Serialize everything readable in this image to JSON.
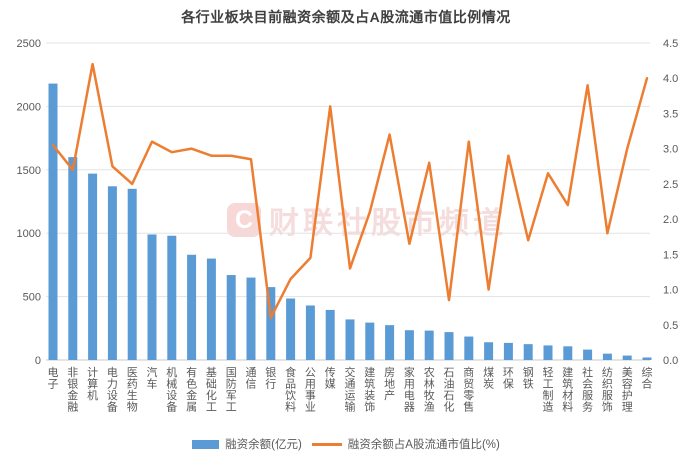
{
  "title": "各行业板块目前融资余额及占A股流通市值比例情况",
  "watermark": {
    "logo_letter": "C",
    "text": "财联社股市频道"
  },
  "legend": [
    {
      "label": "融资余额(亿元)",
      "type": "bar"
    },
    {
      "label": "融资余额占A股流通市值比(%)",
      "type": "line"
    }
  ],
  "colors": {
    "bar": "#5B9BD5",
    "line": "#ED7D31",
    "gridline": "#e3e3e3",
    "axis_line": "#c9c9c9",
    "tick_label": "#595959",
    "title": "#3f3f3f"
  },
  "chart_data": {
    "type": "bar",
    "subtype": "combo-bar-line-dual-axis",
    "title": "各行业板块目前融资余额及占A股流通市值比例情况",
    "xlabel": "",
    "ylabel_left": "融资余额(亿元)",
    "ylabel_right": "融资余额占A股流通市值比(%)",
    "grid": true,
    "legend_position": "bottom",
    "categories": [
      "电子",
      "非银金融",
      "计算机",
      "电力设备",
      "医药生物",
      "汽车",
      "机械设备",
      "有色金属",
      "基础化工",
      "国防军工",
      "通信",
      "银行",
      "食品饮料",
      "公用事业",
      "传媒",
      "交通运输",
      "建筑装饰",
      "房地产",
      "家用电器",
      "农林牧渔",
      "石油石化",
      "商贸零售",
      "煤炭",
      "环保",
      "钢铁",
      "轻工制造",
      "建筑材料",
      "社会服务",
      "纺织服饰",
      "美容护理",
      "综合"
    ],
    "series": [
      {
        "name": "融资余额(亿元)",
        "type": "bar",
        "axis": "left",
        "values": [
          2180,
          1600,
          1470,
          1370,
          1350,
          990,
          980,
          830,
          800,
          670,
          650,
          575,
          485,
          430,
          395,
          320,
          295,
          275,
          235,
          232,
          220,
          185,
          140,
          135,
          125,
          115,
          108,
          82,
          50,
          35,
          20
        ]
      },
      {
        "name": "融资余额占A股流通市值比(%)",
        "type": "line",
        "axis": "right",
        "values": [
          3.05,
          2.7,
          4.2,
          2.75,
          2.5,
          3.1,
          2.95,
          3.0,
          2.9,
          2.9,
          2.85,
          0.6,
          1.15,
          1.45,
          3.6,
          1.3,
          2.1,
          3.2,
          1.65,
          2.8,
          0.85,
          3.1,
          1.0,
          2.9,
          1.7,
          2.65,
          2.2,
          3.9,
          1.8,
          3.0,
          4.0
        ]
      }
    ],
    "left_axis": {
      "min": 0,
      "max": 2500,
      "step": 500,
      "ticks": [
        "0",
        "500",
        "1000",
        "1500",
        "2000",
        "2500"
      ]
    },
    "right_axis": {
      "min": 0,
      "max": 4.5,
      "step": 0.5,
      "ticks": [
        "0.0",
        "0.5",
        "1.0",
        "1.5",
        "2.0",
        "2.5",
        "3.0",
        "3.5",
        "4.0",
        "4.5"
      ]
    }
  }
}
